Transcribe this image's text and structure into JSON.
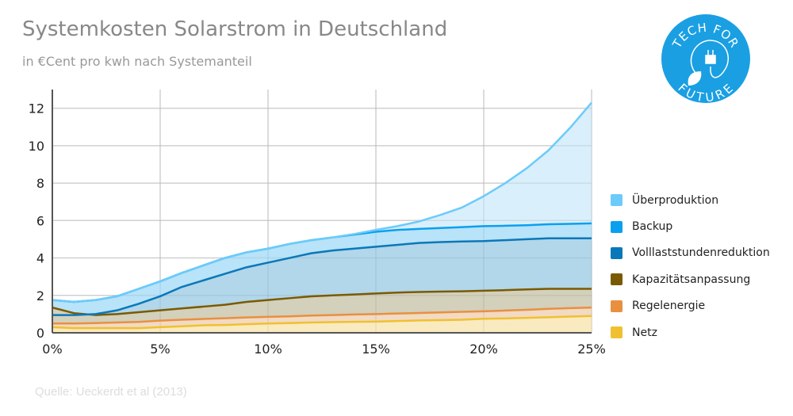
{
  "header": {
    "title": "Systemkosten Solarstrom in Deutschland",
    "subtitle": "in €Cent pro kwh nach Systemanteil"
  },
  "source": "Quelle: Ueckerdt et al (2013)",
  "logo": {
    "top_text": "TECH FOR",
    "bottom_text": "FUTURE",
    "color": "#1a9fe3"
  },
  "chart_data": {
    "type": "area",
    "title": "Systemkosten Solarstrom in Deutschland",
    "subtitle": "in €Cent pro kwh nach Systemanteil",
    "xlabel": "",
    "ylabel": "",
    "xlim": [
      0,
      25
    ],
    "ylim": [
      0,
      13
    ],
    "x_ticks": [
      0,
      5,
      10,
      15,
      20,
      25
    ],
    "x_tick_labels": [
      "0%",
      "5%",
      "10%",
      "15%",
      "20%",
      "25%"
    ],
    "y_ticks": [
      0,
      2,
      4,
      6,
      8,
      10,
      12
    ],
    "y_tick_labels": [
      "0",
      "2",
      "4",
      "6",
      "8",
      "10",
      "12"
    ],
    "grid": true,
    "legend_position": "right",
    "x": [
      0,
      1,
      2,
      3,
      4,
      5,
      6,
      7,
      8,
      9,
      10,
      11,
      12,
      13,
      14,
      15,
      16,
      17,
      18,
      19,
      20,
      21,
      22,
      23,
      24,
      25
    ],
    "series": [
      {
        "name": "Überproduktion",
        "color": "#6ccbfa",
        "fill": "#d2ecfa",
        "values": [
          1.75,
          1.65,
          1.75,
          1.95,
          2.35,
          2.75,
          3.2,
          3.6,
          4.0,
          4.3,
          4.5,
          4.75,
          4.95,
          5.1,
          5.28,
          5.5,
          5.7,
          5.95,
          6.3,
          6.7,
          7.3,
          8.0,
          8.8,
          9.75,
          10.95,
          12.3
        ]
      },
      {
        "name": "Backup",
        "color": "#0aa0f0",
        "fill": "#b2e0f8",
        "values": [
          1.75,
          1.65,
          1.75,
          1.95,
          2.35,
          2.75,
          3.2,
          3.6,
          4.0,
          4.3,
          4.5,
          4.75,
          4.95,
          5.1,
          5.25,
          5.4,
          5.5,
          5.55,
          5.6,
          5.65,
          5.7,
          5.72,
          5.75,
          5.8,
          5.82,
          5.85
        ]
      },
      {
        "name": "Volllaststundenreduktion",
        "color": "#0a78b8",
        "fill": "#b0d4e8",
        "values": [
          0.95,
          0.95,
          1.0,
          1.2,
          1.55,
          1.95,
          2.45,
          2.8,
          3.15,
          3.5,
          3.75,
          4.0,
          4.25,
          4.4,
          4.5,
          4.6,
          4.7,
          4.8,
          4.85,
          4.88,
          4.9,
          4.95,
          5.0,
          5.05,
          5.05,
          5.05
        ]
      },
      {
        "name": "Kapazitätsanpassung",
        "color": "#7a5a00",
        "fill": "#d8cfb4",
        "values": [
          1.35,
          1.05,
          0.95,
          1.0,
          1.1,
          1.2,
          1.3,
          1.4,
          1.5,
          1.65,
          1.75,
          1.85,
          1.95,
          2.0,
          2.05,
          2.1,
          2.15,
          2.18,
          2.2,
          2.22,
          2.25,
          2.28,
          2.32,
          2.35,
          2.35,
          2.35
        ]
      },
      {
        "name": "Regelenergie",
        "color": "#e89040",
        "fill": "#f7dcc4",
        "values": [
          0.5,
          0.5,
          0.52,
          0.55,
          0.58,
          0.65,
          0.7,
          0.74,
          0.78,
          0.82,
          0.85,
          0.88,
          0.92,
          0.95,
          0.98,
          1.0,
          1.03,
          1.06,
          1.09,
          1.12,
          1.15,
          1.19,
          1.23,
          1.28,
          1.32,
          1.35
        ]
      },
      {
        "name": "Netz",
        "color": "#f0c030",
        "fill": "#faecc0",
        "values": [
          0.3,
          0.25,
          0.25,
          0.25,
          0.25,
          0.3,
          0.35,
          0.4,
          0.42,
          0.46,
          0.5,
          0.52,
          0.55,
          0.57,
          0.59,
          0.6,
          0.63,
          0.66,
          0.68,
          0.7,
          0.75,
          0.77,
          0.8,
          0.83,
          0.87,
          0.9
        ]
      }
    ]
  }
}
